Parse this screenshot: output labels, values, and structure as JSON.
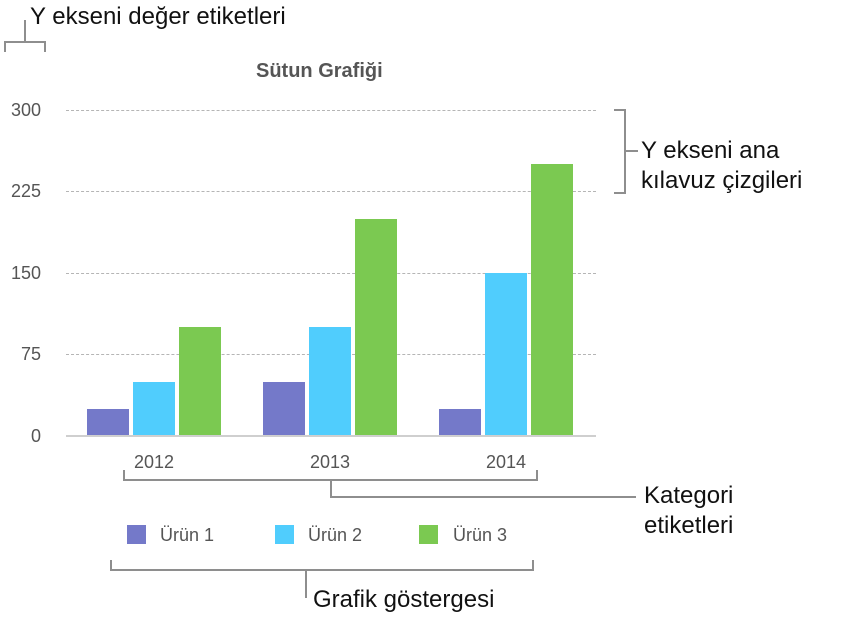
{
  "annotations": {
    "y_axis_value_labels": "Y ekseni değer etiketleri",
    "y_axis_major_gridlines_line1": "Y ekseni ana",
    "y_axis_major_gridlines_line2": "kılavuz çizgileri",
    "category_labels_line1": "Kategori",
    "category_labels_line2": "etiketleri",
    "chart_legend": "Grafik göstergesi"
  },
  "colors": {
    "series1": "#7479c9",
    "series2": "#50cdfd",
    "series3": "#7bc951",
    "bracket": "#8e8e8e",
    "gridline": "#b5b5b5",
    "axis_text": "#555555"
  },
  "chart_data": {
    "type": "bar",
    "title": "Sütun Grafiği",
    "xlabel": "",
    "ylabel": "",
    "categories": [
      "2012",
      "2013",
      "2014"
    ],
    "series": [
      {
        "name": "Ürün 1",
        "values": [
          25,
          50,
          25
        ]
      },
      {
        "name": "Ürün 2",
        "values": [
          50,
          100,
          150
        ]
      },
      {
        "name": "Ürün 3",
        "values": [
          100,
          200,
          250
        ]
      }
    ],
    "ylim": [
      0,
      300
    ],
    "yticks": [
      "300",
      "225",
      "150",
      "75",
      "0"
    ],
    "grid": true,
    "legend_position": "bottom"
  }
}
